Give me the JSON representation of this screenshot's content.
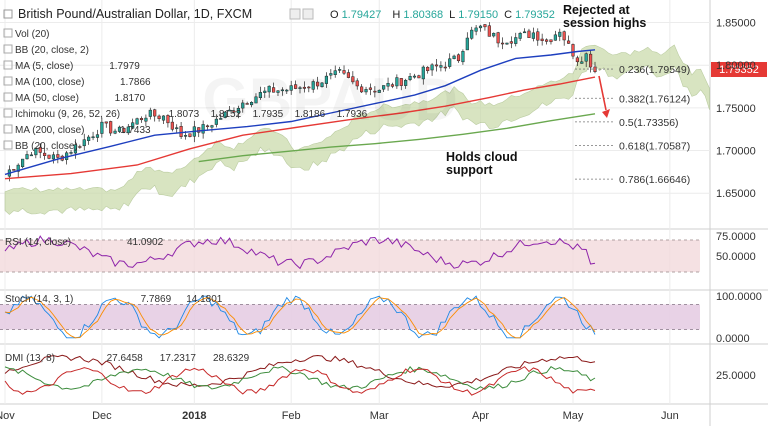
{
  "header": {
    "symbol_title": "British Pound/Australian Dollar, 1D, FXCM",
    "ohlc": {
      "o_label": "O",
      "o": "1.79427",
      "h_label": "H",
      "h": "1.80368",
      "l_label": "L",
      "l": "1.79150",
      "c_label": "C",
      "c": "1.79352"
    },
    "colors": {
      "up": "#26a69a",
      "down": "#ef5350"
    }
  },
  "indicators_legend": [
    {
      "label": "Vol (20)",
      "values": []
    },
    {
      "label": "BB (20, close, 2)",
      "values": []
    },
    {
      "label": "MA (5, close)",
      "values": [
        {
          "v": "1.7979",
          "color": "#c62828"
        }
      ]
    },
    {
      "label": "MA (100, close)",
      "values": [
        {
          "v": "1.7866",
          "color": "#c62828"
        }
      ]
    },
    {
      "label": "MA (50, close)",
      "values": [
        {
          "v": "1.8170",
          "color": "#1e3fbf"
        }
      ]
    },
    {
      "label": "Ichimoku (9, 26, 52, 26)",
      "values": [
        {
          "v": "1.8073",
          "color": "#1e6fbf"
        },
        {
          "v": "1.8152",
          "color": "#8b1a1a"
        },
        {
          "v": "1.7935",
          "color": "#3c8c3c"
        },
        {
          "v": "1.8186",
          "color": "#3c8c3c"
        },
        {
          "v": "1.7936",
          "color": "#c62828"
        }
      ]
    },
    {
      "label": "MA (200, close)",
      "values": [
        {
          "v": "1.7433",
          "color": "#3c8c3c"
        }
      ]
    },
    {
      "label": "BB (20, close)",
      "values": []
    }
  ],
  "annotations": {
    "rejected": [
      "Rejected at",
      "session highs"
    ],
    "cloud": [
      "Holds cloud",
      "support"
    ]
  },
  "price_tag": {
    "value": "1.79352",
    "color": "#e53935"
  },
  "rsi": {
    "label": "RSI (14, close)",
    "value": "41.0902",
    "color": "#8e24aa"
  },
  "stoch": {
    "label": "Stoch (14, 3, 1)",
    "k": "7.7869",
    "d": "14.1801",
    "k_color": "#1e88e5",
    "d_color": "#fb8c00"
  },
  "dmi": {
    "label": "DMI (13, 8)",
    "adx": "27.6458",
    "plus": "17.2317",
    "minus": "28.6329",
    "adx_color": "#8b1a1a",
    "plus_color": "#3c8c3c",
    "minus_color": "#c62828"
  },
  "chart_data": {
    "type": "line",
    "title": "British Pound/Australian Dollar, 1D, FXCM",
    "x_tick_labels": [
      "Nov",
      "Dec",
      "2018",
      "Feb",
      "Mar",
      "Apr",
      "May",
      "Jun"
    ],
    "price_axis": {
      "ticks": [
        "1.85000",
        "1.80000",
        "1.75000",
        "1.70000",
        "1.65000"
      ],
      "ylim": [
        1.635,
        1.86
      ]
    },
    "rsi_axis": {
      "ticks": [
        "75.0000",
        "50.0000"
      ],
      "ylim": [
        10,
        80
      ]
    },
    "stoch_axis": {
      "ticks": [
        "100.0000",
        "0.0000"
      ],
      "ylim": [
        -10,
        110
      ]
    },
    "dmi_axis": {
      "ticks": [
        "25.0000"
      ],
      "ylim": [
        0,
        50
      ]
    },
    "fibonacci": [
      {
        "label": "0.236(1.79549)",
        "value": 1.79549
      },
      {
        "label": "0.382(1.76124)",
        "value": 1.76124
      },
      {
        "label": "0.5(1.73356)",
        "value": 1.73356
      },
      {
        "label": "0.618(1.70587)",
        "value": 1.70587
      },
      {
        "label": "0.786(1.66646)",
        "value": 1.66646
      }
    ],
    "series": [
      {
        "name": "MA (50, close)",
        "color": "#1e3fbf",
        "points": [
          [
            0,
            1.672
          ],
          [
            12,
            1.69
          ],
          [
            24,
            1.705
          ],
          [
            34,
            1.718
          ],
          [
            44,
            1.723
          ],
          [
            55,
            1.728
          ],
          [
            65,
            1.734
          ],
          [
            74,
            1.744
          ],
          [
            84,
            1.755
          ],
          [
            93,
            1.765
          ],
          [
            100,
            1.776
          ],
          [
            108,
            1.794
          ],
          [
            116,
            1.808
          ],
          [
            124,
            1.812
          ],
          [
            130,
            1.816
          ],
          [
            134,
            1.818
          ]
        ]
      },
      {
        "name": "MA (100, close)",
        "color": "#e53935",
        "points": [
          [
            0,
            1.667
          ],
          [
            15,
            1.673
          ],
          [
            30,
            1.683
          ],
          [
            42,
            1.702
          ],
          [
            54,
            1.718
          ],
          [
            66,
            1.727
          ],
          [
            78,
            1.736
          ],
          [
            90,
            1.744
          ],
          [
            100,
            1.752
          ],
          [
            110,
            1.762
          ],
          [
            118,
            1.771
          ],
          [
            126,
            1.778
          ],
          [
            134,
            1.786
          ]
        ]
      },
      {
        "name": "MA (200, close)",
        "color": "#6aa84f",
        "points": [
          [
            44,
            1.687
          ],
          [
            54,
            1.694
          ],
          [
            64,
            1.699
          ],
          [
            74,
            1.704
          ],
          [
            84,
            1.708
          ],
          [
            94,
            1.713
          ],
          [
            104,
            1.719
          ],
          [
            114,
            1.726
          ],
          [
            124,
            1.735
          ],
          [
            134,
            1.743
          ]
        ]
      }
    ]
  }
}
